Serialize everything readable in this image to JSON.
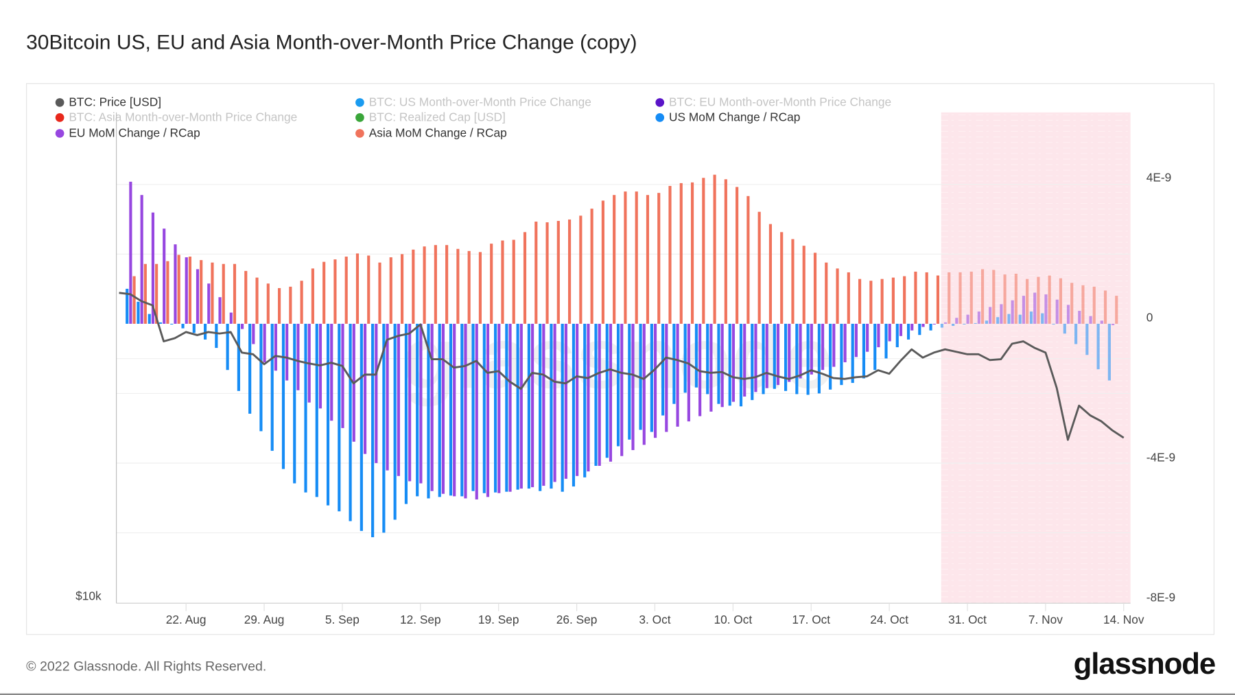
{
  "title": "30Bitcoin US, EU and Asia Month-over-Month Price Change (copy)",
  "legend": [
    {
      "label": "BTC: Price [USD]",
      "color": "#5a5a5a",
      "active": true
    },
    {
      "label": "BTC: US Month-over-Month Price Change",
      "color": "#1a9bf0",
      "active": false
    },
    {
      "label": "BTC: EU Month-over-Month Price Change",
      "color": "#5a14c8",
      "active": false
    },
    {
      "label": "BTC: Asia Month-over-Month Price Change",
      "color": "#e8281c",
      "active": false
    },
    {
      "label": "BTC: Realized Cap [USD]",
      "color": "#3aa63a",
      "active": false
    },
    {
      "label": "US MoM Change / RCap",
      "color": "#168cf5",
      "active": true
    },
    {
      "label": "EU MoM Change / RCap",
      "color": "#9747e0",
      "active": true
    },
    {
      "label": "Asia MoM Change / RCap",
      "color": "#f0735c",
      "active": true
    }
  ],
  "footer": "© 2022 Glassnode. All Rights Reserved.",
  "logo": "glassnode",
  "chart_data": {
    "type": "bar",
    "title": "30Bitcoin US, EU and Asia Month-over-Month Price Change (copy)",
    "x_ticks": [
      "22. Aug",
      "29. Aug",
      "5. Sep",
      "12. Sep",
      "19. Sep",
      "26. Sep",
      "3. Oct",
      "10. Oct",
      "17. Oct",
      "24. Oct",
      "31. Oct",
      "7. Nov",
      "14. Nov"
    ],
    "first_tick_date": "2022-08-22",
    "right_axis": {
      "unit": "1E-9",
      "ticks": [
        {
          "v": 4,
          "label": "4E-9"
        },
        {
          "v": 0,
          "label": "0"
        },
        {
          "v": -4,
          "label": "-4E-9"
        },
        {
          "v": -8,
          "label": "-8E-9"
        }
      ],
      "range": [
        -8,
        5.3
      ]
    },
    "left_axis": {
      "scale": "log",
      "ticks": [
        {
          "v": 10000,
          "label": "$10k"
        }
      ]
    },
    "highlight_region": {
      "from": "2022-10-29",
      "to": "2022-11-14",
      "color": "#fde6eb"
    },
    "bars_start_date": "2022-08-17",
    "series": [
      {
        "name": "US MoM Change / RCap",
        "color": "#168cf5",
        "unit": "1E-9",
        "values": [
          1.0,
          0.63,
          0.28,
          0.04,
          -0.02,
          -0.13,
          -0.26,
          -0.45,
          -0.69,
          -1.32,
          -1.92,
          -2.57,
          -3.07,
          -3.63,
          -4.15,
          -4.56,
          -4.82,
          -4.95,
          -5.19,
          -5.36,
          -5.64,
          -5.92,
          -6.1,
          -5.97,
          -5.6,
          -5.15,
          -4.93,
          -4.99,
          -4.95,
          -4.91,
          -4.93,
          -4.78,
          -4.84,
          -4.82,
          -4.8,
          -4.74,
          -4.71,
          -4.78,
          -4.71,
          -4.8,
          -4.65,
          -4.39,
          -4.06,
          -3.83,
          -3.5,
          -3.31,
          -3.03,
          -3.09,
          -2.62,
          -2.29,
          -1.97,
          -1.82,
          -2.01,
          -2.29,
          -2.34,
          -2.36,
          -2.18,
          -2.01,
          -1.86,
          -1.92,
          -2.01,
          -2.03,
          -1.99,
          -1.88,
          -1.75,
          -1.69,
          -1.56,
          -1.32,
          -0.99,
          -0.67,
          -0.45,
          -0.32,
          -0.19,
          -0.11,
          -0.06,
          -0.02,
          0.02,
          0.09,
          0.19,
          0.28,
          0.26,
          0.35,
          0.3,
          -0.02,
          -0.28,
          -0.58,
          -0.89,
          -1.3,
          -1.62
        ]
      },
      {
        "name": "EU MoM Change / RCap",
        "color": "#9747e0",
        "unit": "1E-9",
        "values": [
          4.06,
          3.68,
          3.18,
          2.72,
          2.27,
          1.9,
          1.56,
          1.15,
          0.76,
          0.32,
          -0.15,
          -0.58,
          -1.1,
          -1.34,
          -1.62,
          -1.9,
          -2.25,
          -2.42,
          -2.77,
          -2.98,
          -3.37,
          -3.72,
          -3.98,
          -4.19,
          -4.35,
          -4.5,
          -4.56,
          -4.78,
          -4.86,
          -4.93,
          -4.99,
          -5.02,
          -4.95,
          -4.84,
          -4.8,
          -4.71,
          -4.67,
          -4.63,
          -4.52,
          -4.43,
          -4.35,
          -4.22,
          -4.06,
          -3.94,
          -3.78,
          -3.61,
          -3.46,
          -3.26,
          -3.09,
          -2.94,
          -2.79,
          -2.64,
          -2.51,
          -2.38,
          -2.23,
          -2.08,
          -1.95,
          -1.84,
          -1.75,
          -1.66,
          -1.56,
          -1.45,
          -1.32,
          -1.23,
          -1.1,
          -0.95,
          -0.8,
          -0.67,
          -0.5,
          -0.35,
          -0.19,
          -0.09,
          -0.02,
          0.04,
          0.17,
          0.26,
          0.35,
          0.48,
          0.56,
          0.67,
          0.8,
          0.89,
          0.84,
          0.69,
          0.54,
          0.37,
          0.22,
          0.09,
          -0.04
        ]
      },
      {
        "name": "Asia MoM Change / RCap",
        "color": "#f0735c",
        "unit": "1E-9",
        "values": [
          1.36,
          1.71,
          1.71,
          1.79,
          1.97,
          1.92,
          1.82,
          1.75,
          1.71,
          1.71,
          1.51,
          1.32,
          1.15,
          1.02,
          1.06,
          1.23,
          1.58,
          1.77,
          1.84,
          1.92,
          2.01,
          1.95,
          1.75,
          1.9,
          1.99,
          2.12,
          2.21,
          2.25,
          2.25,
          2.14,
          2.08,
          2.05,
          2.29,
          2.38,
          2.4,
          2.62,
          2.92,
          2.9,
          2.94,
          2.98,
          3.09,
          3.29,
          3.52,
          3.68,
          3.78,
          3.78,
          3.68,
          3.74,
          3.94,
          4.02,
          4.04,
          4.17,
          4.26,
          4.13,
          3.91,
          3.65,
          3.2,
          2.85,
          2.62,
          2.42,
          2.23,
          2.03,
          1.75,
          1.58,
          1.47,
          1.28,
          1.23,
          1.28,
          1.32,
          1.36,
          1.49,
          1.47,
          1.38,
          1.47,
          1.47,
          1.49,
          1.56,
          1.54,
          1.41,
          1.43,
          1.28,
          1.34,
          1.38,
          1.3,
          1.17,
          1.1,
          1.06,
          0.95,
          0.8
        ]
      },
      {
        "name": "BTC: Price [USD]",
        "type": "line",
        "color": "#5a5a5a",
        "axis": "left",
        "start_date": "2022-08-16",
        "values": [
          24600,
          24500,
          24000,
          23700,
          21300,
          21500,
          21900,
          21700,
          21900,
          21800,
          21900,
          20600,
          20500,
          19900,
          20400,
          20300,
          20100,
          19950,
          19830,
          19990,
          19800,
          18800,
          19300,
          19300,
          21400,
          21650,
          21800,
          22400,
          20200,
          20200,
          19700,
          19800,
          20100,
          19400,
          19500,
          18900,
          18500,
          19400,
          19300,
          18900,
          18800,
          19200,
          19100,
          19400,
          19600,
          19400,
          19300,
          19050,
          19600,
          20300,
          20150,
          19950,
          19500,
          19400,
          19450,
          19150,
          19050,
          19150,
          19400,
          19200,
          19050,
          19250,
          19550,
          19350,
          19100,
          19050,
          19150,
          19200,
          19550,
          19350,
          20100,
          20800,
          20300,
          20600,
          20800,
          20650,
          20500,
          20500,
          20150,
          20200,
          21150,
          21300,
          20900,
          20600,
          18550,
          15900,
          17600,
          17100,
          16800,
          16350,
          16000
        ]
      }
    ]
  }
}
